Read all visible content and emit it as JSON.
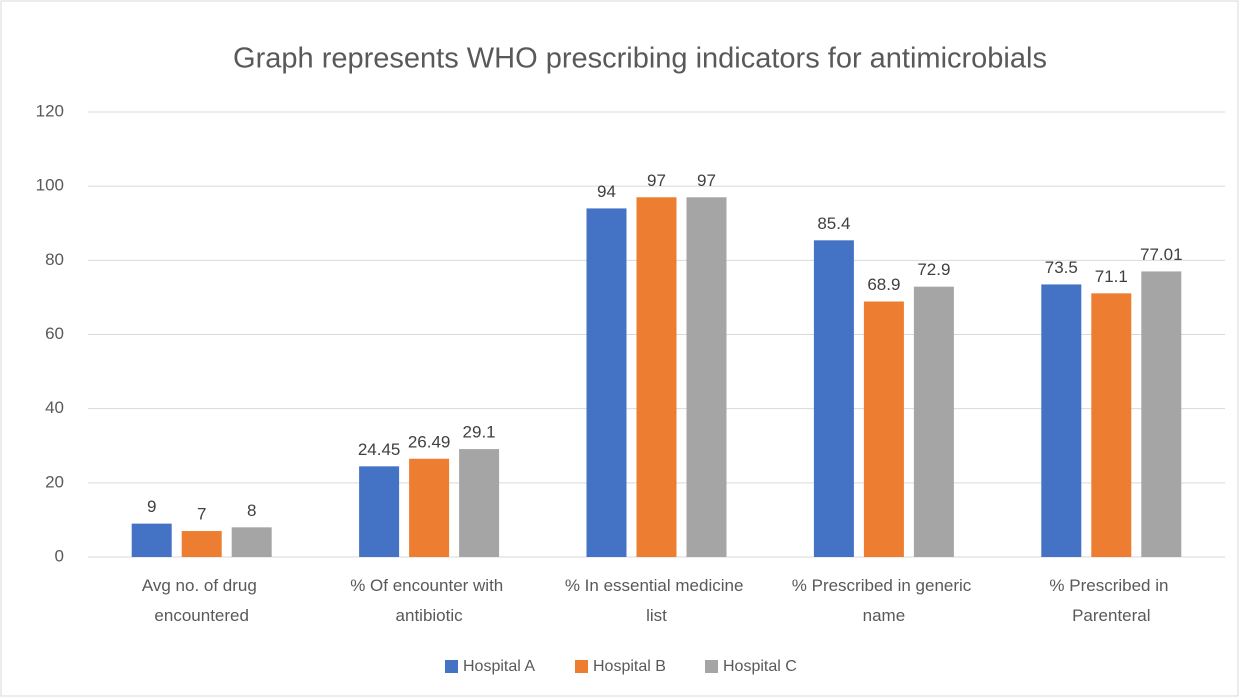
{
  "chart_data": {
    "type": "bar",
    "title": "Graph represents WHO prescribing indicators for antimicrobials",
    "categories": [
      "Avg no. of drug encountered",
      "% Of encounter with antibiotic",
      "% In essential medicine list",
      "% Prescribed in generic name",
      "% Prescribed in Parenteral"
    ],
    "series": [
      {
        "name": "Hospital A",
        "color": "#4472c4",
        "values": [
          9,
          24.45,
          94,
          85.4,
          73.5
        ]
      },
      {
        "name": "Hospital B",
        "color": "#ed7d31",
        "values": [
          7,
          26.49,
          97,
          68.9,
          71.1
        ]
      },
      {
        "name": "Hospital C",
        "color": "#a5a5a5",
        "values": [
          8,
          29.1,
          97,
          72.9,
          77.01
        ]
      }
    ],
    "ylim": [
      0,
      120
    ],
    "yticks": [
      0,
      20,
      40,
      60,
      80,
      100,
      120
    ],
    "grid": true,
    "legend": "bottom"
  }
}
